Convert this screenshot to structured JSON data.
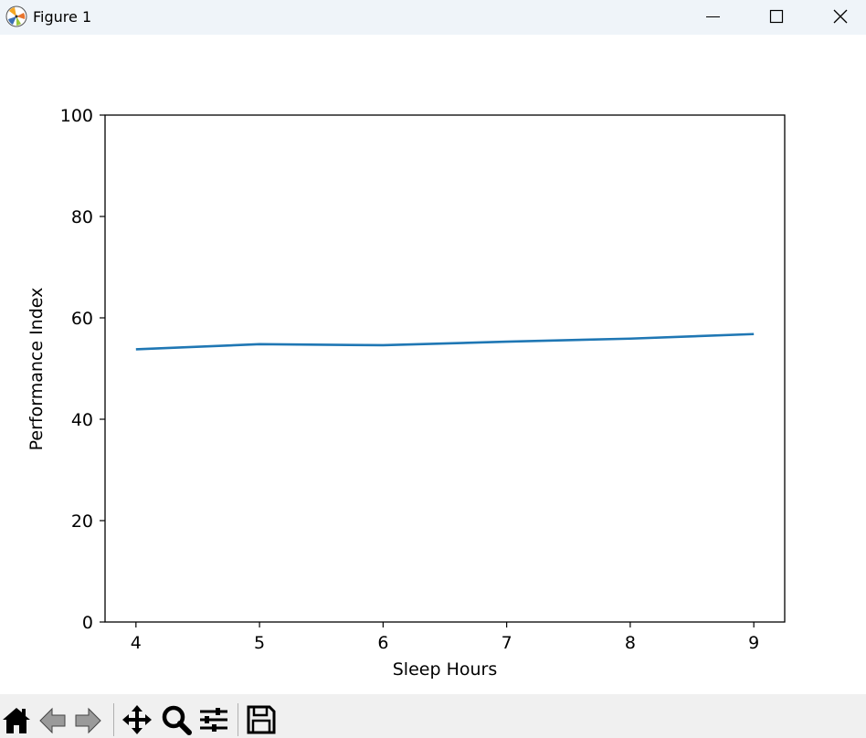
{
  "window": {
    "title": "Figure 1"
  },
  "toolbar": {
    "tools": [
      "home-icon",
      "back-icon",
      "forward-icon",
      "pan-icon",
      "zoom-icon",
      "configure-subplots-icon",
      "save-icon"
    ]
  },
  "chart_data": {
    "type": "line",
    "title": "",
    "xlabel": "Sleep Hours",
    "ylabel": "Performance Index",
    "xlim": [
      3.75,
      9.25
    ],
    "ylim": [
      0,
      100
    ],
    "xticks": [
      4,
      5,
      6,
      7,
      8,
      9
    ],
    "yticks": [
      0,
      20,
      40,
      60,
      80,
      100
    ],
    "grid": false,
    "series": [
      {
        "color": "#1f77b4",
        "x": [
          4,
          5,
          6,
          7,
          8,
          9
        ],
        "y": [
          53.8,
          54.8,
          54.6,
          55.3,
          55.9,
          56.8
        ]
      }
    ]
  }
}
